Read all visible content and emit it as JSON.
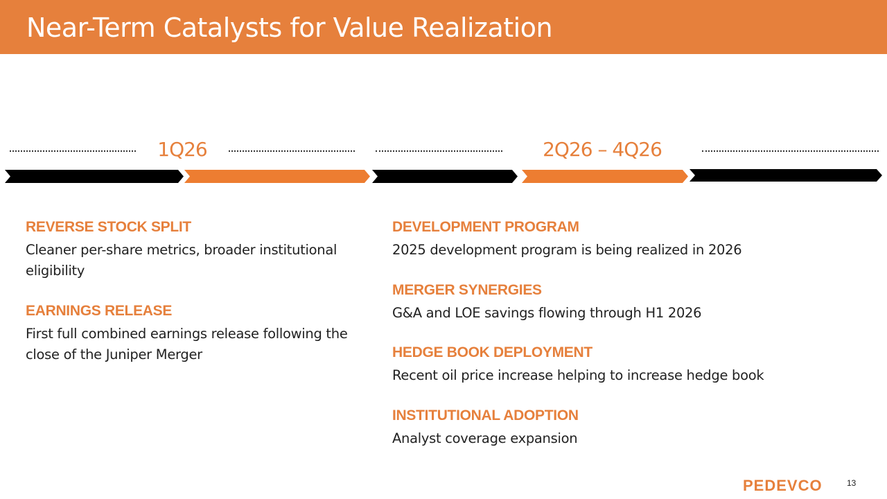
{
  "title": "Near-Term Catalysts for Value Realization",
  "timeline": {
    "periods": [
      "1Q26",
      "2Q26 – 4Q26"
    ],
    "colors": {
      "accent": "#ED7D31",
      "dark": "#000000"
    }
  },
  "left": [
    {
      "heading": "REVERSE STOCK SPLIT",
      "text": "Cleaner per-share metrics, broader institutional eligibility"
    },
    {
      "heading": "EARNINGS RELEASE",
      "text": "First full combined earnings release following the close of the Juniper Merger"
    }
  ],
  "right": [
    {
      "heading": "DEVELOPMENT PROGRAM",
      "text": "2025 development program is being realized in 2026"
    },
    {
      "heading": "MERGER SYNERGIES",
      "text": "G&A and LOE savings flowing through H1 2026"
    },
    {
      "heading": "HEDGE BOOK DEPLOYMENT",
      "text": "Recent oil price increase helping to increase hedge book"
    },
    {
      "heading": "INSTITUTIONAL ADOPTION",
      "text": "Analyst coverage expansion"
    }
  ],
  "footer": {
    "logo": "PEDEVCO",
    "page": "13"
  }
}
